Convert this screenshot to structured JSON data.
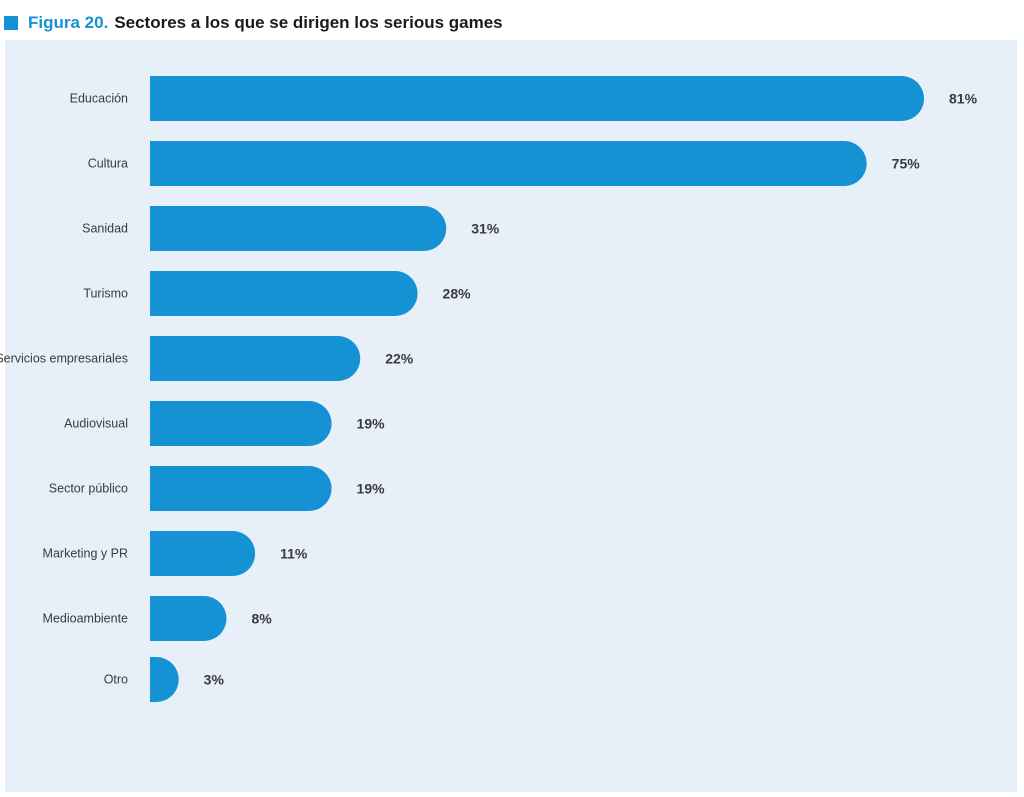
{
  "header": {
    "figure_number": "Figura 20.",
    "title": "Sectores a los que se dirigen los serious games"
  },
  "colors": {
    "bar": "#1592d3",
    "background": "#e7f0f8",
    "label": "#3b3b3b"
  },
  "chart_data": {
    "type": "bar",
    "orientation": "horizontal",
    "title": "Sectores a los que se dirigen los serious games",
    "categories": [
      "Educación",
      "Cultura",
      "Sanidad",
      "Turismo",
      "Servicios empresariales",
      "Audiovisual",
      "Sector público",
      "Marketing y PR",
      "Medioambiente",
      "Otro"
    ],
    "values": [
      81,
      75,
      31,
      28,
      22,
      19,
      19,
      11,
      8,
      3
    ],
    "value_labels": [
      "81%",
      "75%",
      "31%",
      "28%",
      "22%",
      "19%",
      "19%",
      "11%",
      "8%",
      "3%"
    ],
    "unit": "%",
    "xlim": [
      0,
      81
    ],
    "grid": false,
    "legend": "none"
  }
}
